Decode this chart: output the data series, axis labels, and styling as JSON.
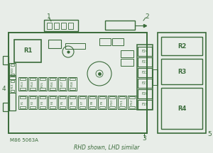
{
  "bg_color": "#e8ede8",
  "diagram_color": "#3a6b3a",
  "title": "RHD shown, LHD similar",
  "subtitle": "M86 5063A",
  "fuses_bottom_row": [
    "F1",
    "F2",
    "F3",
    "F4",
    "F5",
    "F6",
    "F7",
    "F8",
    "F9",
    "F10",
    "F11",
    "F12"
  ],
  "fuses_top_row": [
    "F13",
    "F14",
    "F15",
    "F16",
    "F17",
    "F18"
  ],
  "fuses_right_col": [
    "F24",
    "F23",
    "F22",
    "F21",
    "F20",
    "F19"
  ],
  "title_fontsize": 5.5,
  "sub_fontsize": 5.0,
  "num_fontsize": 6.5,
  "fuse_label_fontsize": 3.5,
  "relay_fontsize": 6.0
}
